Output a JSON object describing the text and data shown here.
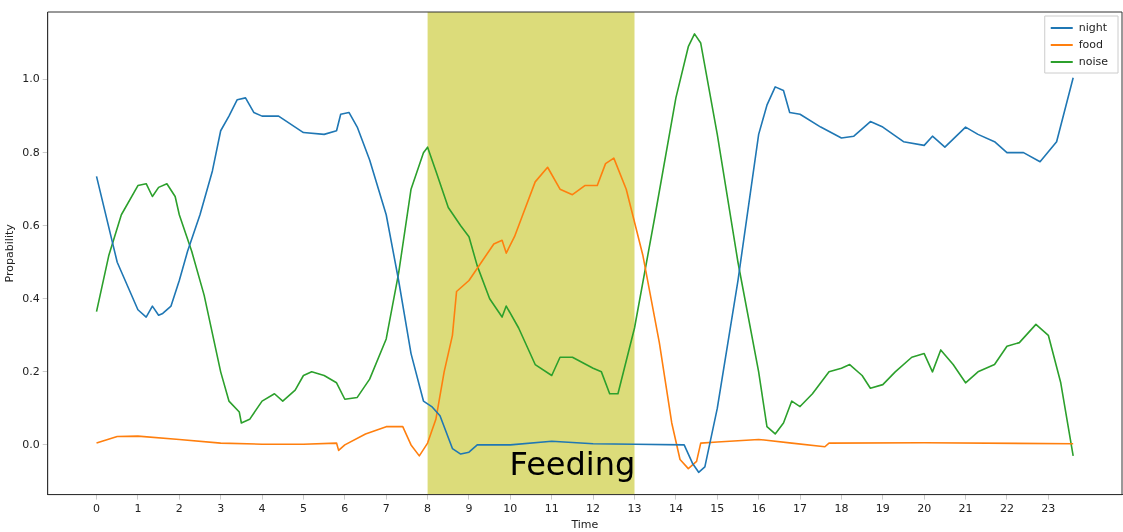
{
  "chart_data": {
    "type": "line",
    "xlabel": "Time",
    "ylabel": "Propability",
    "xlim": [
      -1.18,
      24.78
    ],
    "ylim": [
      -0.136,
      1.185
    ],
    "xticks": [
      0,
      1,
      2,
      3,
      4,
      5,
      6,
      7,
      8,
      9,
      10,
      11,
      12,
      13,
      14,
      15,
      16,
      17,
      18,
      19,
      20,
      21,
      22,
      23
    ],
    "yticks": [
      {
        "value": 0,
        "label": "0.0"
      },
      {
        "value": 0.2,
        "label": "0.2"
      },
      {
        "value": 0.4,
        "label": "0.4"
      },
      {
        "value": 0.6,
        "label": "0.6"
      },
      {
        "value": 0.8,
        "label": "0.8"
      },
      {
        "value": 1,
        "label": "1.0"
      }
    ],
    "legend": "top right",
    "grid": false,
    "marker": "none",
    "line_style": "solid",
    "bands": [
      {
        "axis": "x",
        "from": 8,
        "to": 13,
        "label": "Feeding",
        "color": "#dcdc7a"
      }
    ],
    "series": [
      {
        "name": "night",
        "color": "#1f77b4",
        "x": [
          0,
          0.5,
          1,
          1.2,
          1.35,
          1.5,
          1.6,
          1.8,
          2,
          2.2,
          2.5,
          2.8,
          3,
          3.2,
          3.4,
          3.6,
          3.8,
          4,
          4.4,
          4.8,
          5,
          5.5,
          5.8,
          5.9,
          6.1,
          6.3,
          6.6,
          7,
          7.3,
          7.6,
          7.9,
          8.1,
          8.3,
          8.6,
          8.8,
          9,
          9.2,
          10,
          11,
          12,
          13,
          14.2,
          14.4,
          14.55,
          14.7,
          15,
          15.5,
          16,
          16.2,
          16.4,
          16.6,
          16.75,
          17,
          17.5,
          18,
          18.3,
          18.7,
          19,
          19.5,
          20,
          20.2,
          20.5,
          21,
          21.3,
          21.7,
          22,
          22.4,
          22.8,
          23.2,
          23.6
        ],
        "values": [
          0.735,
          0.5,
          0.37,
          0.35,
          0.38,
          0.355,
          0.36,
          0.38,
          0.45,
          0.53,
          0.63,
          0.75,
          0.86,
          0.9,
          0.945,
          0.95,
          0.91,
          0.9,
          0.9,
          0.87,
          0.855,
          0.85,
          0.86,
          0.905,
          0.91,
          0.87,
          0.78,
          0.63,
          0.45,
          0.25,
          0.12,
          0.105,
          0.08,
          -0.01,
          -0.025,
          -0.02,
          0,
          0,
          0.01,
          0.003,
          0.002,
          0,
          -0.05,
          -0.075,
          -0.06,
          0.1,
          0.45,
          0.85,
          0.93,
          0.98,
          0.97,
          0.91,
          0.905,
          0.87,
          0.84,
          0.845,
          0.885,
          0.87,
          0.83,
          0.82,
          0.845,
          0.815,
          0.87,
          0.85,
          0.83,
          0.8,
          0.8,
          0.775,
          0.83,
          1.005
        ]
      },
      {
        "name": "food",
        "color": "#ff7f0e",
        "x": [
          0,
          0.5,
          1,
          2,
          3,
          4,
          5,
          5.8,
          5.85,
          6,
          6.5,
          7,
          7.4,
          7.6,
          7.8,
          8,
          8.2,
          8.4,
          8.6,
          8.7,
          9,
          9.3,
          9.6,
          9.8,
          9.9,
          10.1,
          10.3,
          10.6,
          10.9,
          11.2,
          11.5,
          11.8,
          12.1,
          12.3,
          12.5,
          12.8,
          13.2,
          13.6,
          13.9,
          14.1,
          14.3,
          14.5,
          14.6,
          15,
          16,
          16.8,
          17.6,
          17.7,
          20,
          23.6
        ],
        "values": [
          0.005,
          0.023,
          0.024,
          0.015,
          0.005,
          0.002,
          0.002,
          0.005,
          -0.015,
          0,
          0.03,
          0.05,
          0.05,
          0,
          -0.03,
          0.005,
          0.07,
          0.2,
          0.3,
          0.42,
          0.45,
          0.5,
          0.55,
          0.56,
          0.525,
          0.57,
          0.63,
          0.72,
          0.76,
          0.7,
          0.685,
          0.71,
          0.71,
          0.77,
          0.785,
          0.7,
          0.52,
          0.28,
          0.06,
          -0.04,
          -0.065,
          -0.045,
          0.005,
          0.008,
          0.015,
          0.005,
          -0.005,
          0.005,
          0.006,
          0.003
        ]
      },
      {
        "name": "noise",
        "color": "#2ca02c",
        "x": [
          0,
          0.3,
          0.6,
          1,
          1.2,
          1.35,
          1.5,
          1.7,
          1.9,
          2,
          2.3,
          2.6,
          3,
          3.2,
          3.45,
          3.5,
          3.7,
          4,
          4.3,
          4.5,
          4.8,
          5,
          5.2,
          5.5,
          5.8,
          6,
          6.3,
          6.6,
          7,
          7.3,
          7.6,
          7.9,
          8,
          8.2,
          8.5,
          8.8,
          9,
          9.2,
          9.5,
          9.8,
          9.9,
          10.2,
          10.6,
          11,
          11.2,
          11.5,
          12,
          12.2,
          12.4,
          12.6,
          13,
          13.5,
          14,
          14.3,
          14.45,
          14.6,
          15,
          15.5,
          16,
          16.2,
          16.4,
          16.6,
          16.8,
          17,
          17.3,
          17.7,
          18,
          18.2,
          18.5,
          18.7,
          19,
          19.3,
          19.7,
          20,
          20.2,
          20.4,
          20.7,
          21,
          21.3,
          21.7,
          22,
          22.3,
          22.7,
          23,
          23.3,
          23.6
        ],
        "values": [
          0.365,
          0.52,
          0.63,
          0.71,
          0.715,
          0.68,
          0.705,
          0.715,
          0.68,
          0.63,
          0.53,
          0.41,
          0.2,
          0.12,
          0.09,
          0.06,
          0.07,
          0.12,
          0.14,
          0.12,
          0.15,
          0.19,
          0.2,
          0.19,
          0.17,
          0.125,
          0.13,
          0.18,
          0.29,
          0.47,
          0.7,
          0.8,
          0.815,
          0.75,
          0.65,
          0.6,
          0.57,
          0.49,
          0.4,
          0.35,
          0.38,
          0.32,
          0.22,
          0.19,
          0.24,
          0.24,
          0.21,
          0.2,
          0.14,
          0.14,
          0.32,
          0.63,
          0.95,
          1.09,
          1.125,
          1.1,
          0.85,
          0.5,
          0.2,
          0.05,
          0.03,
          0.06,
          0.12,
          0.105,
          0.14,
          0.2,
          0.21,
          0.22,
          0.19,
          0.155,
          0.165,
          0.2,
          0.24,
          0.25,
          0.2,
          0.26,
          0.22,
          0.17,
          0.2,
          0.22,
          0.27,
          0.28,
          0.33,
          0.3,
          0.17,
          -0.03
        ]
      }
    ]
  }
}
